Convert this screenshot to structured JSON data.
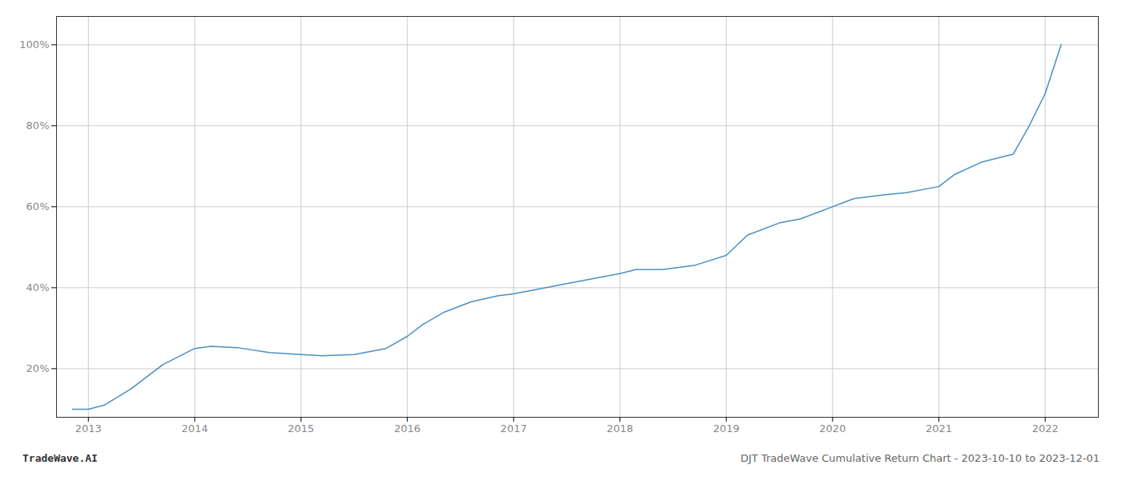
{
  "chart_data": {
    "type": "line",
    "x": [
      2012.85,
      2013.0,
      2013.15,
      2013.4,
      2013.7,
      2014.0,
      2014.15,
      2014.4,
      2014.7,
      2015.0,
      2015.2,
      2015.5,
      2015.8,
      2016.0,
      2016.15,
      2016.35,
      2016.6,
      2016.85,
      2017.0,
      2017.2,
      2017.5,
      2017.8,
      2018.0,
      2018.15,
      2018.4,
      2018.7,
      2019.0,
      2019.2,
      2019.5,
      2019.7,
      2020.0,
      2020.2,
      2020.5,
      2020.7,
      2021.0,
      2021.15,
      2021.4,
      2021.7,
      2021.85,
      2022.0,
      2022.15
    ],
    "values": [
      10,
      10,
      11,
      15,
      21,
      25,
      25.5,
      25.2,
      24,
      23.5,
      23.2,
      23.5,
      25,
      28,
      31,
      34,
      36.5,
      38,
      38.5,
      39.5,
      41,
      42.5,
      43.5,
      44.5,
      44.5,
      45.5,
      48,
      53,
      56,
      57,
      60,
      62,
      63,
      63.5,
      65,
      68,
      71,
      73,
      80,
      88,
      100
    ],
    "color": "#4a90c4",
    "xlim": [
      2012.7,
      2022.5
    ],
    "ylim": [
      8,
      107
    ],
    "xticks": [
      2013,
      2014,
      2015,
      2016,
      2017,
      2018,
      2019,
      2020,
      2021,
      2022
    ],
    "yticks": [
      {
        "value": 20,
        "label": "20%"
      },
      {
        "value": 40,
        "label": "40%"
      },
      {
        "value": 60,
        "label": "60%"
      },
      {
        "value": 80,
        "label": "80%"
      },
      {
        "value": 100,
        "label": "100%"
      }
    ],
    "grid": true,
    "annotations": [
      "TradeWave.AI",
      "DJT TradeWave Cumulative Return Chart - 2023-10-10 to 2023-12-01"
    ]
  }
}
